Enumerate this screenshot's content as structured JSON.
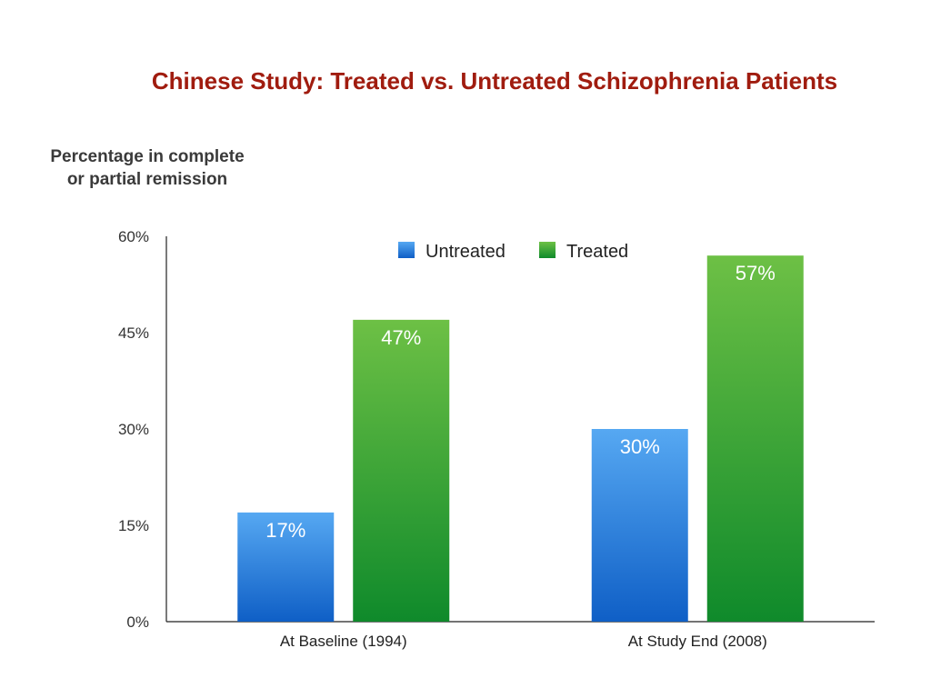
{
  "slide": {
    "title": "Chinese Study: Treated vs. Untreated Schizophrenia Patients",
    "ylabel_line1": "Percentage in complete",
    "ylabel_line2": "or partial remission"
  },
  "chart_data": {
    "type": "bar",
    "title": "Chinese Study: Treated vs. Untreated Schizophrenia Patients",
    "xlabel": "",
    "ylabel": "Percentage in complete or partial remission",
    "categories": [
      "At Baseline (1994)",
      "At Study End (2008)"
    ],
    "series": [
      {
        "name": "Untreated",
        "values": [
          17,
          30
        ],
        "labels": [
          "17%",
          "30%"
        ],
        "color_top": "#56a8f2",
        "color_bottom": "#0f5fc6"
      },
      {
        "name": "Treated",
        "values": [
          47,
          57
        ],
        "labels": [
          "47%",
          "57%"
        ],
        "color_top": "#6dc045",
        "color_bottom": "#0f8a2b"
      }
    ],
    "ylim": [
      0,
      60
    ],
    "yticks": [
      0,
      15,
      30,
      45,
      60
    ],
    "ytick_labels": [
      "0%",
      "15%",
      "30%",
      "45%",
      "60%"
    ],
    "grid": false,
    "legend_position": "top-center"
  }
}
